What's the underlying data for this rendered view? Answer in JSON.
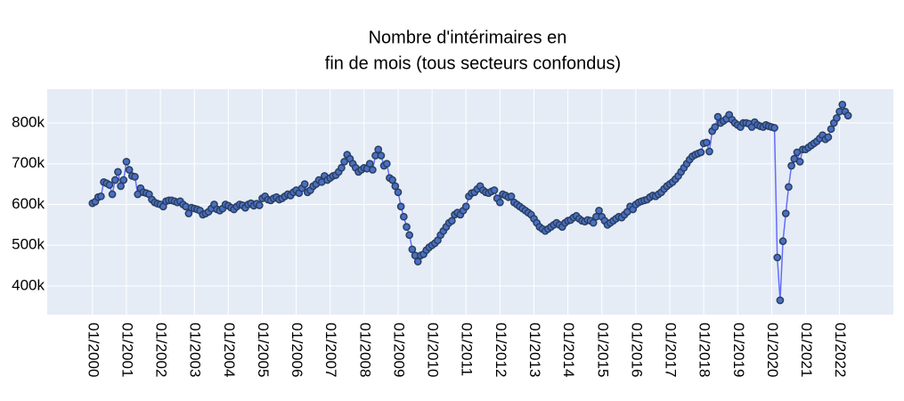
{
  "chart_data": {
    "type": "line",
    "title": [
      "Nombre d'intérimaires en",
      "fin de mois (tous secteurs confondus)"
    ],
    "x": [
      "01/2000",
      "02/2000",
      "03/2000",
      "04/2000",
      "05/2000",
      "06/2000",
      "07/2000",
      "08/2000",
      "09/2000",
      "10/2000",
      "11/2000",
      "12/2000",
      "01/2001",
      "02/2001",
      "03/2001",
      "04/2001",
      "05/2001",
      "06/2001",
      "07/2001",
      "08/2001",
      "09/2001",
      "10/2001",
      "11/2001",
      "12/2001",
      "01/2002",
      "02/2002",
      "03/2002",
      "04/2002",
      "05/2002",
      "06/2002",
      "07/2002",
      "08/2002",
      "09/2002",
      "10/2002",
      "11/2002",
      "12/2002",
      "01/2003",
      "02/2003",
      "03/2003",
      "04/2003",
      "05/2003",
      "06/2003",
      "07/2003",
      "08/2003",
      "09/2003",
      "10/2003",
      "11/2003",
      "12/2003",
      "01/2004",
      "02/2004",
      "03/2004",
      "04/2004",
      "05/2004",
      "06/2004",
      "07/2004",
      "08/2004",
      "09/2004",
      "10/2004",
      "11/2004",
      "12/2004",
      "01/2005",
      "02/2005",
      "03/2005",
      "04/2005",
      "05/2005",
      "06/2005",
      "07/2005",
      "08/2005",
      "09/2005",
      "10/2005",
      "11/2005",
      "12/2005",
      "01/2006",
      "02/2006",
      "03/2006",
      "04/2006",
      "05/2006",
      "06/2006",
      "07/2006",
      "08/2006",
      "09/2006",
      "10/2006",
      "11/2006",
      "12/2006",
      "01/2007",
      "02/2007",
      "03/2007",
      "04/2007",
      "05/2007",
      "06/2007",
      "07/2007",
      "08/2007",
      "09/2007",
      "10/2007",
      "11/2007",
      "12/2007",
      "01/2008",
      "02/2008",
      "03/2008",
      "04/2008",
      "05/2008",
      "06/2008",
      "07/2008",
      "08/2008",
      "09/2008",
      "10/2008",
      "11/2008",
      "12/2008",
      "01/2009",
      "02/2009",
      "03/2009",
      "04/2009",
      "05/2009",
      "06/2009",
      "07/2009",
      "08/2009",
      "09/2009",
      "10/2009",
      "11/2009",
      "12/2009",
      "01/2010",
      "02/2010",
      "03/2010",
      "04/2010",
      "05/2010",
      "06/2010",
      "07/2010",
      "08/2010",
      "09/2010",
      "10/2010",
      "11/2010",
      "12/2010",
      "01/2011",
      "02/2011",
      "03/2011",
      "04/2011",
      "05/2011",
      "06/2011",
      "07/2011",
      "08/2011",
      "09/2011",
      "10/2011",
      "11/2011",
      "12/2011",
      "01/2012",
      "02/2012",
      "03/2012",
      "04/2012",
      "05/2012",
      "06/2012",
      "07/2012",
      "08/2012",
      "09/2012",
      "10/2012",
      "11/2012",
      "12/2012",
      "01/2013",
      "02/2013",
      "03/2013",
      "04/2013",
      "05/2013",
      "06/2013",
      "07/2013",
      "08/2013",
      "09/2013",
      "10/2013",
      "11/2013",
      "12/2013",
      "01/2014",
      "02/2014",
      "03/2014",
      "04/2014",
      "05/2014",
      "06/2014",
      "07/2014",
      "08/2014",
      "09/2014",
      "10/2014",
      "11/2014",
      "12/2014",
      "01/2015",
      "02/2015",
      "03/2015",
      "04/2015",
      "05/2015",
      "06/2015",
      "07/2015",
      "08/2015",
      "09/2015",
      "10/2015",
      "11/2015",
      "12/2015",
      "01/2016",
      "02/2016",
      "03/2016",
      "04/2016",
      "05/2016",
      "06/2016",
      "07/2016",
      "08/2016",
      "09/2016",
      "10/2016",
      "11/2016",
      "12/2016",
      "01/2017",
      "02/2017",
      "03/2017",
      "04/2017",
      "05/2017",
      "06/2017",
      "07/2017",
      "08/2017",
      "09/2017",
      "10/2017",
      "11/2017",
      "12/2017",
      "01/2018",
      "02/2018",
      "03/2018",
      "04/2018",
      "05/2018",
      "06/2018",
      "07/2018",
      "08/2018",
      "09/2018",
      "10/2018",
      "11/2018",
      "12/2018",
      "01/2019",
      "02/2019",
      "03/2019",
      "04/2019",
      "05/2019",
      "06/2019",
      "07/2019",
      "08/2019",
      "09/2019",
      "10/2019",
      "11/2019",
      "12/2019",
      "01/2020",
      "02/2020",
      "03/2020",
      "04/2020",
      "05/2020",
      "06/2020",
      "07/2020",
      "08/2020",
      "09/2020",
      "10/2020",
      "11/2020",
      "12/2020",
      "01/2021",
      "02/2021",
      "03/2021",
      "04/2021",
      "05/2021",
      "06/2021",
      "07/2021",
      "08/2021",
      "09/2021",
      "10/2021",
      "11/2021",
      "12/2021",
      "01/2022",
      "02/2022",
      "03/2022",
      "04/2022"
    ],
    "values": [
      603000,
      607000,
      618000,
      620000,
      655000,
      652000,
      648000,
      625000,
      660000,
      680000,
      645000,
      660000,
      705000,
      685000,
      670000,
      668000,
      625000,
      640000,
      630000,
      628000,
      625000,
      612000,
      605000,
      602000,
      600000,
      595000,
      608000,
      610000,
      610000,
      608000,
      605000,
      608000,
      600000,
      595000,
      578000,
      592000,
      590000,
      588000,
      585000,
      575000,
      578000,
      582000,
      590000,
      600000,
      588000,
      585000,
      590000,
      600000,
      597000,
      592000,
      588000,
      595000,
      600000,
      598000,
      592000,
      600000,
      603000,
      597000,
      602000,
      598000,
      615000,
      620000,
      612000,
      610000,
      615000,
      618000,
      612000,
      615000,
      620000,
      625000,
      622000,
      630000,
      635000,
      628000,
      640000,
      650000,
      630000,
      635000,
      645000,
      650000,
      660000,
      655000,
      670000,
      660000,
      665000,
      670000,
      672000,
      680000,
      690000,
      705000,
      722000,
      712000,
      700000,
      690000,
      680000,
      685000,
      690000,
      688000,
      700000,
      685000,
      720000,
      735000,
      720000,
      695000,
      700000,
      665000,
      660000,
      645000,
      630000,
      595000,
      570000,
      545000,
      525000,
      490000,
      475000,
      460000,
      475000,
      478000,
      488000,
      495000,
      500000,
      505000,
      512000,
      525000,
      535000,
      545000,
      555000,
      560000,
      575000,
      580000,
      575000,
      585000,
      595000,
      620000,
      628000,
      630000,
      638000,
      645000,
      635000,
      630000,
      628000,
      632000,
      635000,
      615000,
      605000,
      625000,
      622000,
      618000,
      620000,
      605000,
      600000,
      595000,
      590000,
      585000,
      580000,
      575000,
      565000,
      555000,
      545000,
      540000,
      535000,
      540000,
      545000,
      550000,
      555000,
      550000,
      545000,
      555000,
      560000,
      562000,
      568000,
      572000,
      565000,
      560000,
      558000,
      562000,
      560000,
      555000,
      570000,
      585000,
      570000,
      560000,
      550000,
      555000,
      560000,
      565000,
      570000,
      568000,
      575000,
      582000,
      595000,
      588000,
      600000,
      605000,
      608000,
      610000,
      612000,
      618000,
      622000,
      620000,
      625000,
      630000,
      638000,
      645000,
      650000,
      655000,
      662000,
      670000,
      680000,
      690000,
      700000,
      710000,
      718000,
      722000,
      725000,
      728000,
      750000,
      752000,
      730000,
      780000,
      790000,
      815000,
      800000,
      805000,
      810000,
      820000,
      808000,
      800000,
      795000,
      790000,
      800000,
      800000,
      798000,
      790000,
      802000,
      795000,
      792000,
      790000,
      795000,
      792000,
      790000,
      788000,
      470000,
      365000,
      510000,
      578000,
      643000,
      695000,
      712000,
      728000,
      705000,
      735000,
      735000,
      740000,
      745000,
      750000,
      755000,
      762000,
      770000,
      760000,
      765000,
      785000,
      800000,
      812000,
      828000,
      845000,
      828000,
      818000
    ],
    "line_color": "#636efa",
    "marker_color": "#4a6fc4",
    "marker_edge": "#2a3f5f",
    "xlim": [
      "09/1998",
      "08/2023"
    ],
    "xticks": [
      "01/2000",
      "01/2001",
      "01/2002",
      "01/2003",
      "01/2004",
      "01/2005",
      "01/2006",
      "01/2007",
      "01/2008",
      "01/2009",
      "01/2010",
      "01/2011",
      "01/2012",
      "01/2013",
      "01/2014",
      "01/2015",
      "01/2016",
      "01/2017",
      "01/2018",
      "01/2019",
      "01/2020",
      "01/2021",
      "01/2022"
    ],
    "ylim": [
      330000,
      883000
    ],
    "yticks": [
      {
        "value": 400000,
        "label": "400k"
      },
      {
        "value": 500000,
        "label": "500k"
      },
      {
        "value": 600000,
        "label": "600k"
      },
      {
        "value": 700000,
        "label": "700k"
      },
      {
        "value": 800000,
        "label": "800k"
      }
    ],
    "grid": true
  }
}
